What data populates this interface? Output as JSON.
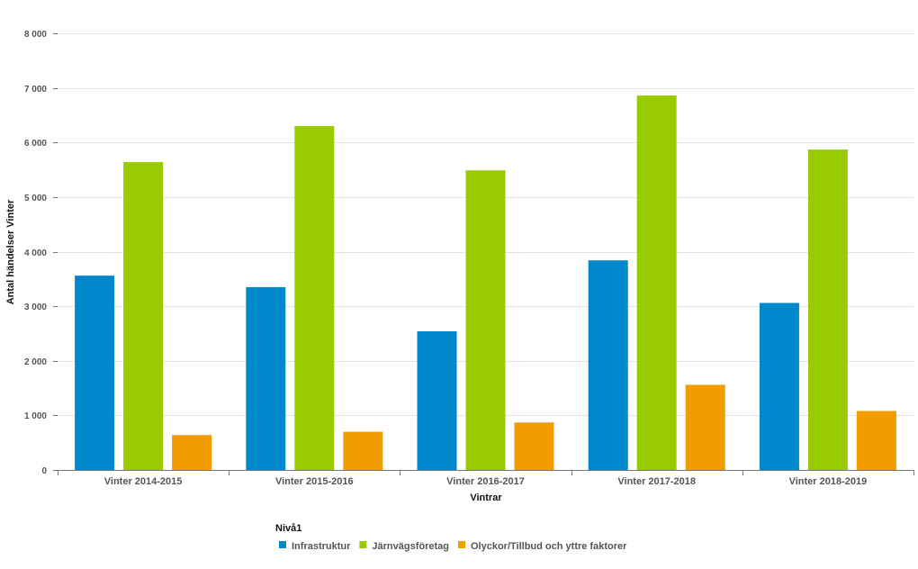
{
  "chart_data": {
    "type": "bar",
    "xlabel": "Vintrar",
    "ylabel": "Antal händelser Vinter",
    "ylim": [
      0,
      8000
    ],
    "yticks": [
      0,
      1000,
      2000,
      3000,
      4000,
      5000,
      6000,
      7000,
      8000
    ],
    "ytick_labels": [
      "0",
      "1 000",
      "2 000",
      "3 000",
      "4 000",
      "5 000",
      "6 000",
      "7 000",
      "8 000"
    ],
    "grid": true,
    "legend_title": "Nivå1",
    "legend_position": "bottom",
    "categories": [
      "Vinter 2014-2015",
      "Vinter 2015-2016",
      "Vinter 2016-2017",
      "Vinter 2017-2018",
      "Vinter 2018-2019"
    ],
    "series": [
      {
        "name": "Infrastruktur",
        "color": "#0088cc",
        "values": [
          3560,
          3350,
          2540,
          3840,
          3060
        ]
      },
      {
        "name": "Järnvägsföretag",
        "color": "#99cc00",
        "values": [
          5640,
          6300,
          5490,
          6860,
          5870
        ]
      },
      {
        "name": "Olyckor/Tillbud och yttre faktorer",
        "color": "#f29c00",
        "values": [
          640,
          700,
          870,
          1560,
          1080
        ]
      }
    ]
  }
}
